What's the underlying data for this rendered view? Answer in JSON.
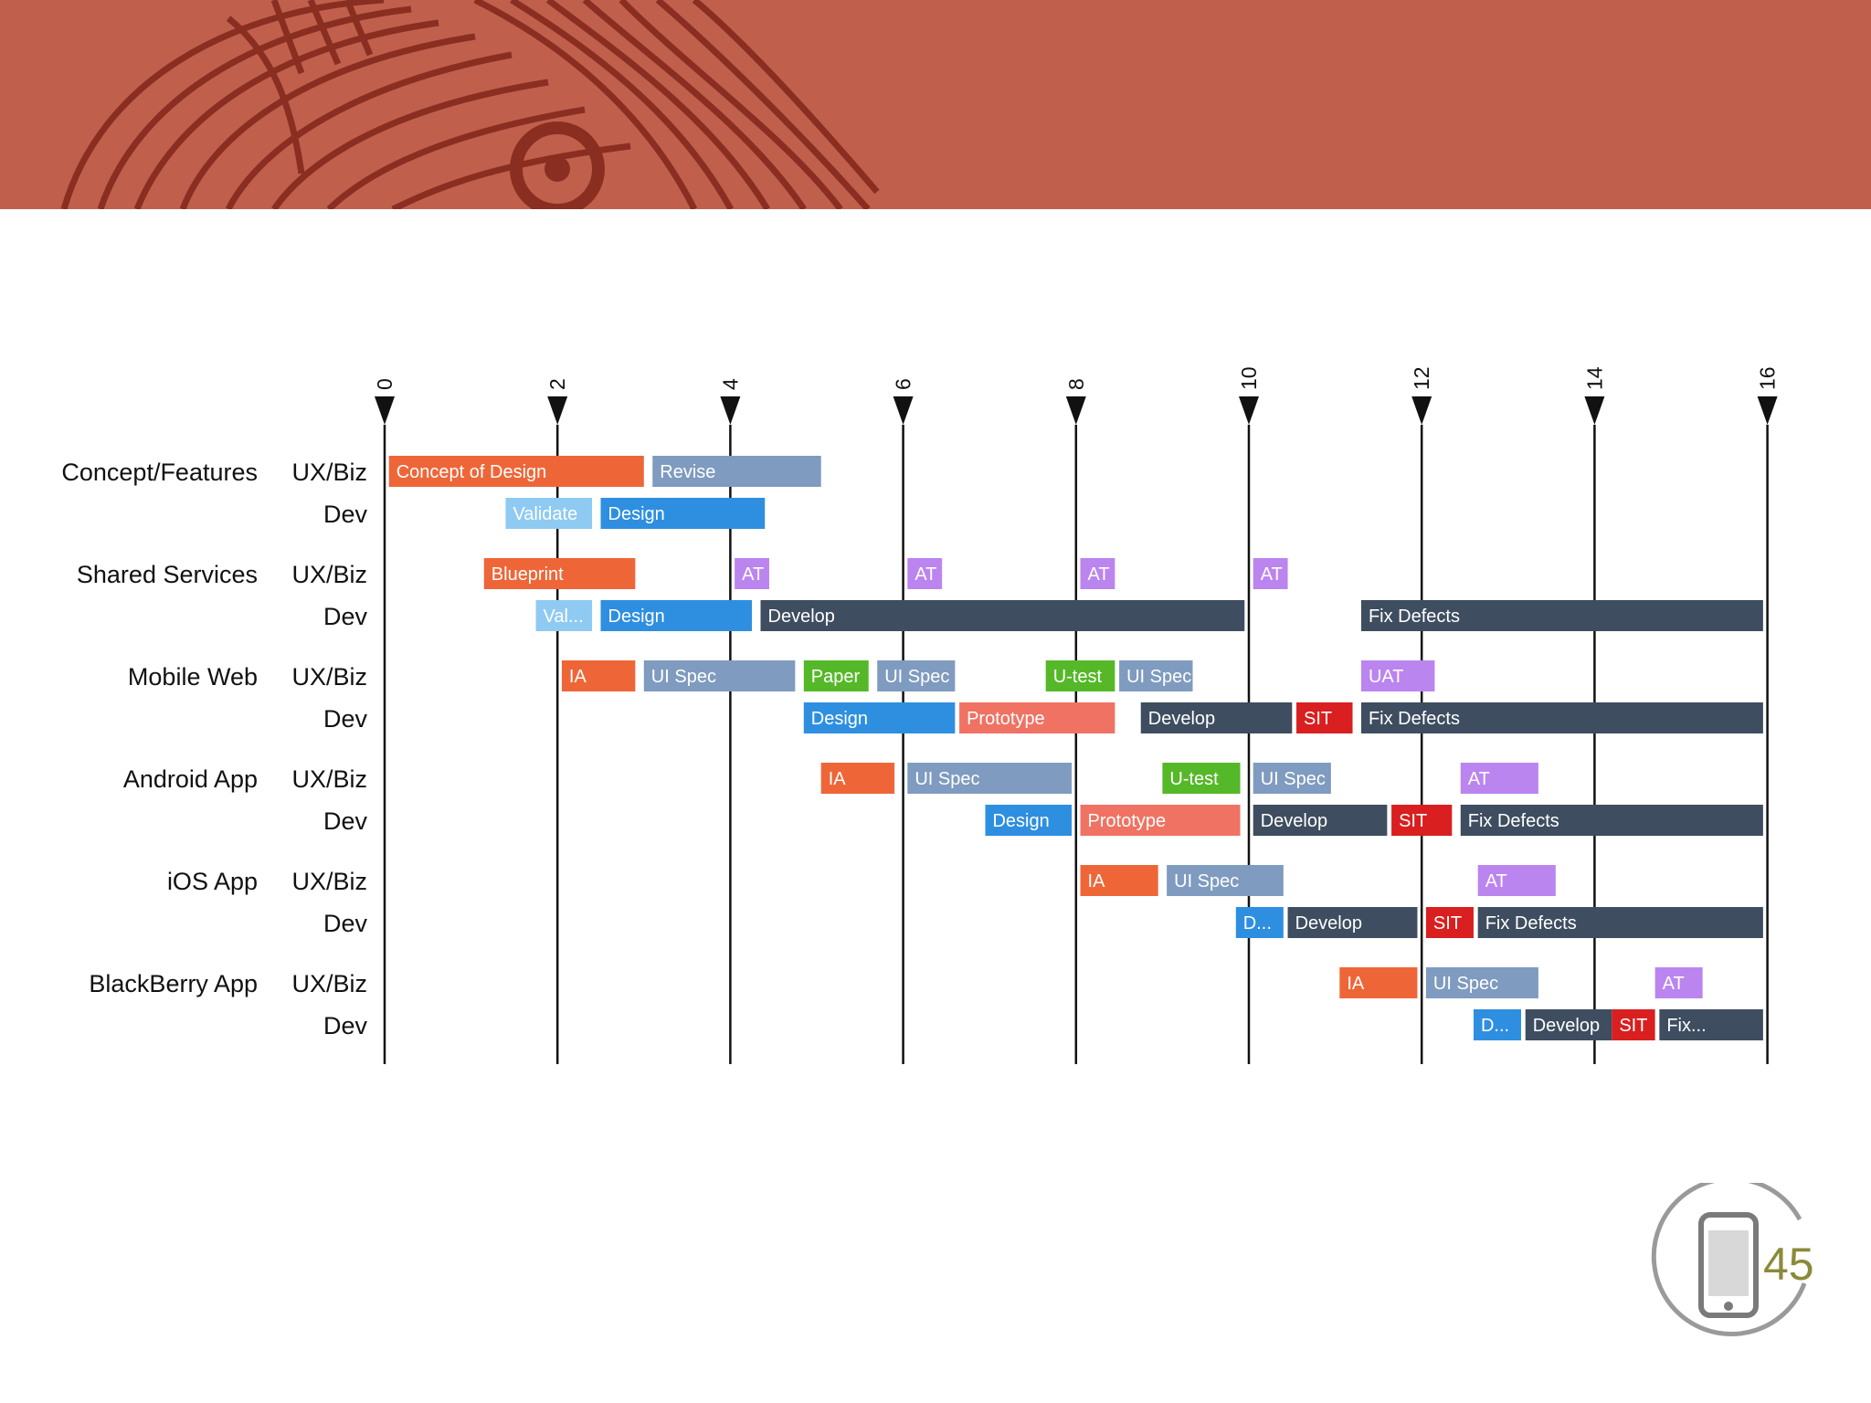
{
  "page": {
    "number": "45"
  },
  "colors": {
    "banner": "#c0604c",
    "banner_dark": "#8a2e22",
    "ia": "#ee6638",
    "uispec": "#7f9bbf",
    "design": "#2e8fe0",
    "validate": "#8fcaf2",
    "develop": "#3e4d60",
    "at": "#bb85f0",
    "sit": "#d91f1f",
    "prototype": "#f07263",
    "utest": "#55b828",
    "axis": "#111111"
  },
  "chart_data": {
    "type": "gantt",
    "x_ticks": [
      "0",
      "2",
      "4",
      "6",
      "8",
      "10",
      "12",
      "14",
      "16"
    ],
    "xlim": [
      0,
      16
    ],
    "groups": [
      {
        "name": "Concept/Features",
        "rows": [
          {
            "label": "UX/Biz",
            "tasks": [
              {
                "name": "Concept of Design",
                "start": 0.05,
                "end": 3.0,
                "kind": "ia"
              },
              {
                "name": "Revise",
                "start": 3.1,
                "end": 5.05,
                "kind": "uispec"
              }
            ]
          },
          {
            "label": "Dev",
            "tasks": [
              {
                "name": "Validate",
                "start": 1.4,
                "end": 2.4,
                "kind": "validate"
              },
              {
                "name": "Design",
                "start": 2.5,
                "end": 4.4,
                "kind": "design"
              }
            ]
          }
        ]
      },
      {
        "name": "Shared Services",
        "rows": [
          {
            "label": "UX/Biz",
            "tasks": [
              {
                "name": "Blueprint",
                "start": 1.15,
                "end": 2.9,
                "kind": "ia"
              },
              {
                "name": "AT",
                "start": 4.05,
                "end": 4.45,
                "kind": "at"
              },
              {
                "name": "AT",
                "start": 6.05,
                "end": 6.45,
                "kind": "at"
              },
              {
                "name": "AT",
                "start": 8.05,
                "end": 8.45,
                "kind": "at"
              },
              {
                "name": "AT",
                "start": 10.05,
                "end": 10.45,
                "kind": "at"
              }
            ]
          },
          {
            "label": "Dev",
            "tasks": [
              {
                "name": "Val...",
                "start": 1.75,
                "end": 2.4,
                "kind": "validate"
              },
              {
                "name": "Design",
                "start": 2.5,
                "end": 4.25,
                "kind": "design"
              },
              {
                "name": "Develop",
                "start": 4.35,
                "end": 9.95,
                "kind": "develop"
              },
              {
                "name": "Fix Defects",
                "start": 11.3,
                "end": 15.95,
                "kind": "develop"
              }
            ]
          }
        ]
      },
      {
        "name": "Mobile Web",
        "rows": [
          {
            "label": "UX/Biz",
            "tasks": [
              {
                "name": "IA",
                "start": 2.05,
                "end": 2.9,
                "kind": "ia"
              },
              {
                "name": "UI Spec",
                "start": 3.0,
                "end": 4.75,
                "kind": "uispec"
              },
              {
                "name": "Paper",
                "start": 4.85,
                "end": 5.6,
                "kind": "utest"
              },
              {
                "name": "UI Spec",
                "start": 5.7,
                "end": 6.6,
                "kind": "uispec"
              },
              {
                "name": "U-test",
                "start": 7.65,
                "end": 8.45,
                "kind": "utest"
              },
              {
                "name": "UI Spec",
                "start": 8.5,
                "end": 9.35,
                "kind": "uispec"
              },
              {
                "name": "UAT",
                "start": 11.3,
                "end": 12.15,
                "kind": "at"
              }
            ]
          },
          {
            "label": "Dev",
            "tasks": [
              {
                "name": "Design",
                "start": 4.85,
                "end": 6.6,
                "kind": "design"
              },
              {
                "name": "Prototype",
                "start": 6.65,
                "end": 8.45,
                "kind": "prototype"
              },
              {
                "name": "Develop",
                "start": 8.75,
                "end": 10.5,
                "kind": "develop"
              },
              {
                "name": "SIT",
                "start": 10.55,
                "end": 11.2,
                "kind": "sit"
              },
              {
                "name": "Fix Defects",
                "start": 11.3,
                "end": 15.95,
                "kind": "develop"
              }
            ]
          }
        ]
      },
      {
        "name": "Android App",
        "rows": [
          {
            "label": "UX/Biz",
            "tasks": [
              {
                "name": "IA",
                "start": 5.05,
                "end": 5.9,
                "kind": "ia"
              },
              {
                "name": "UI Spec",
                "start": 6.05,
                "end": 7.95,
                "kind": "uispec"
              },
              {
                "name": "U-test",
                "start": 9.0,
                "end": 9.9,
                "kind": "utest"
              },
              {
                "name": "UI Spec",
                "start": 10.05,
                "end": 10.95,
                "kind": "uispec"
              },
              {
                "name": "AT",
                "start": 12.45,
                "end": 13.35,
                "kind": "at"
              }
            ]
          },
          {
            "label": "Dev",
            "tasks": [
              {
                "name": "Design",
                "start": 6.95,
                "end": 7.95,
                "kind": "design"
              },
              {
                "name": "Prototype",
                "start": 8.05,
                "end": 9.9,
                "kind": "prototype"
              },
              {
                "name": "Develop",
                "start": 10.05,
                "end": 11.6,
                "kind": "develop"
              },
              {
                "name": "SIT",
                "start": 11.65,
                "end": 12.35,
                "kind": "sit"
              },
              {
                "name": "Fix Defects",
                "start": 12.45,
                "end": 15.95,
                "kind": "develop"
              }
            ]
          }
        ]
      },
      {
        "name": "iOS App",
        "rows": [
          {
            "label": "UX/Biz",
            "tasks": [
              {
                "name": "IA",
                "start": 8.05,
                "end": 8.95,
                "kind": "ia"
              },
              {
                "name": "UI Spec",
                "start": 9.05,
                "end": 10.4,
                "kind": "uispec"
              },
              {
                "name": "AT",
                "start": 12.65,
                "end": 13.55,
                "kind": "at"
              }
            ]
          },
          {
            "label": "Dev",
            "tasks": [
              {
                "name": "D...",
                "start": 9.85,
                "end": 10.4,
                "kind": "design"
              },
              {
                "name": "Develop",
                "start": 10.45,
                "end": 11.95,
                "kind": "develop"
              },
              {
                "name": "SIT",
                "start": 12.05,
                "end": 12.6,
                "kind": "sit"
              },
              {
                "name": "Fix Defects",
                "start": 12.65,
                "end": 15.95,
                "kind": "develop"
              }
            ]
          }
        ]
      },
      {
        "name": "BlackBerry App",
        "rows": [
          {
            "label": "UX/Biz",
            "tasks": [
              {
                "name": "IA",
                "start": 11.05,
                "end": 11.95,
                "kind": "ia"
              },
              {
                "name": "UI Spec",
                "start": 12.05,
                "end": 13.35,
                "kind": "uispec"
              },
              {
                "name": "AT",
                "start": 14.7,
                "end": 15.25,
                "kind": "at"
              }
            ]
          },
          {
            "label": "Dev",
            "tasks": [
              {
                "name": "D...",
                "start": 12.6,
                "end": 13.15,
                "kind": "design"
              },
              {
                "name": "Develop",
                "start": 13.2,
                "end": 14.2,
                "kind": "develop"
              },
              {
                "name": "SIT",
                "start": 14.2,
                "end": 14.7,
                "kind": "sit"
              },
              {
                "name": "Fix...",
                "start": 14.75,
                "end": 15.95,
                "kind": "develop"
              }
            ]
          }
        ]
      }
    ]
  }
}
